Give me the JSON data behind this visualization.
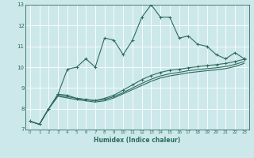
{
  "xlabel": "Humidex (Indice chaleur)",
  "ylabel": "",
  "xlim": [
    -0.5,
    23.5
  ],
  "ylim": [
    7,
    13
  ],
  "yticks": [
    7,
    8,
    9,
    10,
    11,
    12,
    13
  ],
  "xticks": [
    0,
    1,
    2,
    3,
    4,
    5,
    6,
    7,
    8,
    9,
    10,
    11,
    12,
    13,
    14,
    15,
    16,
    17,
    18,
    19,
    20,
    21,
    22,
    23
  ],
  "bg_color": "#cce8ea",
  "grid_color": "#ffffff",
  "line_color": "#2e6b5e",
  "line1": [
    7.4,
    7.25,
    8.0,
    8.7,
    9.9,
    10.0,
    10.4,
    10.0,
    11.4,
    11.3,
    10.6,
    11.3,
    12.4,
    13.0,
    12.4,
    12.4,
    11.4,
    11.5,
    11.1,
    11.0,
    10.6,
    10.4,
    10.7,
    10.4
  ],
  "line2": [
    7.4,
    7.25,
    8.0,
    8.7,
    8.65,
    8.5,
    8.45,
    8.4,
    8.5,
    8.65,
    8.9,
    9.15,
    9.4,
    9.6,
    9.75,
    9.85,
    9.9,
    9.97,
    10.02,
    10.08,
    10.12,
    10.18,
    10.27,
    10.38
  ],
  "line3": [
    7.4,
    7.25,
    8.0,
    8.65,
    8.58,
    8.5,
    8.44,
    8.38,
    8.45,
    8.58,
    8.78,
    9.0,
    9.22,
    9.42,
    9.58,
    9.68,
    9.75,
    9.83,
    9.88,
    9.93,
    9.97,
    10.03,
    10.13,
    10.27
  ],
  "line4": [
    7.4,
    7.25,
    8.0,
    8.6,
    8.52,
    8.44,
    8.38,
    8.32,
    8.38,
    8.52,
    8.72,
    8.92,
    9.12,
    9.32,
    9.48,
    9.58,
    9.65,
    9.73,
    9.78,
    9.83,
    9.87,
    9.93,
    10.03,
    10.18
  ]
}
